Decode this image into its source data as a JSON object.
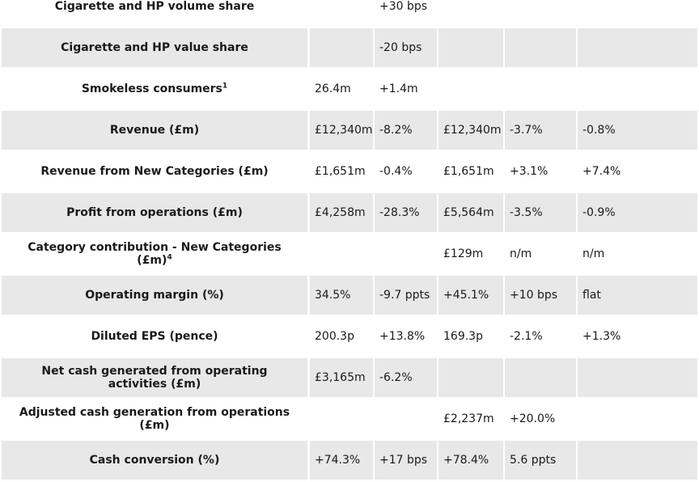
{
  "rows": [
    {
      "metric": "Cigarette and HP volume share",
      "sup": "",
      "c1": "",
      "c2": "+30 bps",
      "c3": "",
      "c4": "",
      "c5": ""
    },
    {
      "metric": "Cigarette and HP value share",
      "sup": "",
      "c1": "",
      "c2": "-20 bps",
      "c3": "",
      "c4": "",
      "c5": ""
    },
    {
      "metric": "Smokeless consumers",
      "sup": "1",
      "c1": "26.4m",
      "c2": "+1.4m",
      "c3": "",
      "c4": "",
      "c5": ""
    },
    {
      "metric": "Revenue (£m)",
      "sup": "",
      "c1": "£12,340m",
      "c2": "-8.2%",
      "c3": "£12,340m",
      "c4": "-3.7%",
      "c5": "-0.8%"
    },
    {
      "metric": "Revenue from New Categories (£m)",
      "sup": "",
      "c1": "£1,651m",
      "c2": "-0.4%",
      "c3": "£1,651m",
      "c4": "+3.1%",
      "c5": "+7.4%"
    },
    {
      "metric": "Profit from operations (£m)",
      "sup": "",
      "c1": "£4,258m",
      "c2": "-28.3%",
      "c3": "£5,564m",
      "c4": "-3.5%",
      "c5": "-0.9%"
    },
    {
      "metric": "Category contribution - New Categories (£m)",
      "sup": "4",
      "c1": "",
      "c2": "",
      "c3": "£129m",
      "c4": "n/m",
      "c5": "n/m"
    },
    {
      "metric": "Operating margin (%)",
      "sup": "",
      "c1": "34.5%",
      "c2": "-9.7 ppts",
      "c3": "+45.1%",
      "c4": "+10 bps",
      "c5": "flat"
    },
    {
      "metric": "Diluted EPS (pence)",
      "sup": "",
      "c1": "200.3p",
      "c2": "+13.8%",
      "c3": "169.3p",
      "c4": "-2.1%",
      "c5": "+1.3%"
    },
    {
      "metric": "Net cash generated from operating activities (£m)",
      "sup": "",
      "c1": "£3,165m",
      "c2": "-6.2%",
      "c3": "",
      "c4": "",
      "c5": ""
    },
    {
      "metric": "Adjusted cash generation from operations (£m)",
      "sup": "",
      "c1": "",
      "c2": "",
      "c3": "£2,237m",
      "c4": "+20.0%",
      "c5": ""
    },
    {
      "metric": "Cash conversion (%)",
      "sup": "",
      "c1": "+74.3%",
      "c2": "+17 bps",
      "c3": "+78.4%",
      "c4": "5.6 ppts",
      "c5": ""
    }
  ]
}
